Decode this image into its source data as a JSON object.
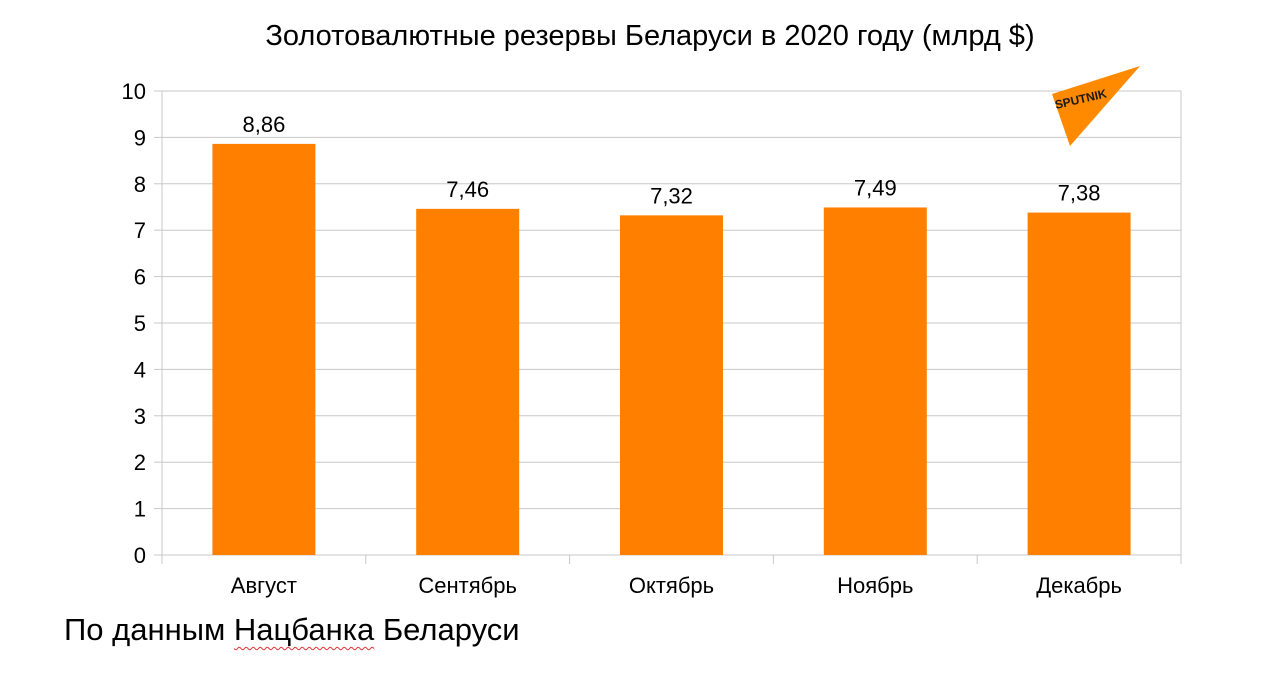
{
  "chart_data": {
    "type": "bar",
    "title": "Золотовалютные резервы Беларуси в 2020 году (млрд $)",
    "categories": [
      "Август",
      "Сентябрь",
      "Октябрь",
      "Ноябрь",
      "Декабрь"
    ],
    "values": [
      8.86,
      7.46,
      7.32,
      7.49,
      7.38
    ],
    "data_labels": [
      "8,86",
      "7,46",
      "7,32",
      "7,49",
      "7,38"
    ],
    "ylim": [
      0,
      10
    ],
    "yticks": [
      0,
      1,
      2,
      3,
      4,
      5,
      6,
      7,
      8,
      9,
      10
    ],
    "grid": true,
    "bar_color": "#ff8000"
  },
  "source": {
    "prefix": "По данным ",
    "underlined": "Нацбанка",
    "suffix": " Беларуси"
  },
  "logo": {
    "text": "SPUTNIK",
    "color": "#ff8a00"
  }
}
